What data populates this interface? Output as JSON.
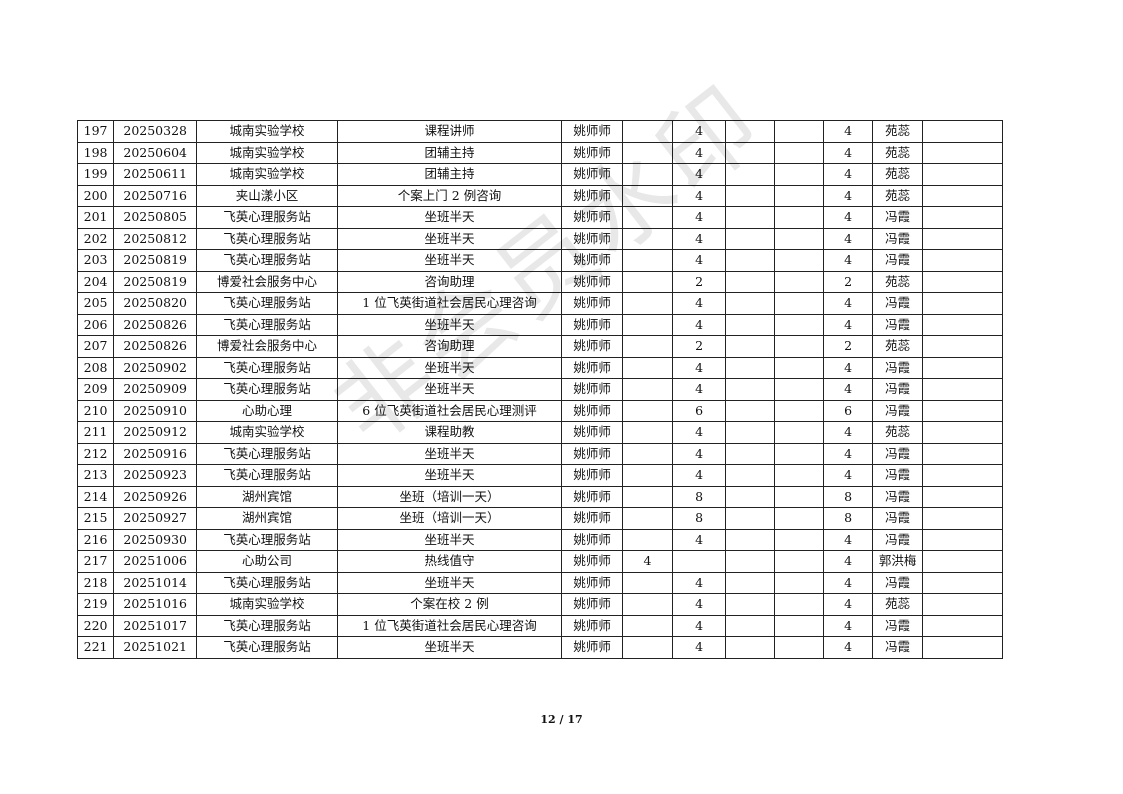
{
  "rows": [
    [
      "197",
      "20250328",
      "城南实验学校",
      "课程讲师",
      "姚师师",
      "",
      "4",
      "",
      "",
      "4",
      "苑蕊",
      ""
    ],
    [
      "198",
      "20250604",
      "城南实验学校",
      "团辅主持",
      "姚师师",
      "",
      "4",
      "",
      "",
      "4",
      "苑蕊",
      ""
    ],
    [
      "199",
      "20250611",
      "城南实验学校",
      "团辅主持",
      "姚师师",
      "",
      "4",
      "",
      "",
      "4",
      "苑蕊",
      ""
    ],
    [
      "200",
      "20250716",
      "夹山漾小区",
      "个案上门 2 例咨询",
      "姚师师",
      "",
      "4",
      "",
      "",
      "4",
      "苑蕊",
      ""
    ],
    [
      "201",
      "20250805",
      "飞英心理服务站",
      "坐班半天",
      "姚师师",
      "",
      "4",
      "",
      "",
      "4",
      "冯霞",
      ""
    ],
    [
      "202",
      "20250812",
      "飞英心理服务站",
      "坐班半天",
      "姚师师",
      "",
      "4",
      "",
      "",
      "4",
      "冯霞",
      ""
    ],
    [
      "203",
      "20250819",
      "飞英心理服务站",
      "坐班半天",
      "姚师师",
      "",
      "4",
      "",
      "",
      "4",
      "冯霞",
      ""
    ],
    [
      "204",
      "20250819",
      "博爱社会服务中心",
      "咨询助理",
      "姚师师",
      "",
      "2",
      "",
      "",
      "2",
      "苑蕊",
      ""
    ],
    [
      "205",
      "20250820",
      "飞英心理服务站",
      "1 位飞英街道社会居民心理咨询",
      "姚师师",
      "",
      "4",
      "",
      "",
      "4",
      "冯霞",
      ""
    ],
    [
      "206",
      "20250826",
      "飞英心理服务站",
      "坐班半天",
      "姚师师",
      "",
      "4",
      "",
      "",
      "4",
      "冯霞",
      ""
    ],
    [
      "207",
      "20250826",
      "博爱社会服务中心",
      "咨询助理",
      "姚师师",
      "",
      "2",
      "",
      "",
      "2",
      "苑蕊",
      ""
    ],
    [
      "208",
      "20250902",
      "飞英心理服务站",
      "坐班半天",
      "姚师师",
      "",
      "4",
      "",
      "",
      "4",
      "冯霞",
      ""
    ],
    [
      "209",
      "20250909",
      "飞英心理服务站",
      "坐班半天",
      "姚师师",
      "",
      "4",
      "",
      "",
      "4",
      "冯霞",
      ""
    ],
    [
      "210",
      "20250910",
      "心助心理",
      "6 位飞英街道社会居民心理测评",
      "姚师师",
      "",
      "6",
      "",
      "",
      "6",
      "冯霞",
      ""
    ],
    [
      "211",
      "20250912",
      "城南实验学校",
      "课程助教",
      "姚师师",
      "",
      "4",
      "",
      "",
      "4",
      "苑蕊",
      ""
    ],
    [
      "212",
      "20250916",
      "飞英心理服务站",
      "坐班半天",
      "姚师师",
      "",
      "4",
      "",
      "",
      "4",
      "冯霞",
      ""
    ],
    [
      "213",
      "20250923",
      "飞英心理服务站",
      "坐班半天",
      "姚师师",
      "",
      "4",
      "",
      "",
      "4",
      "冯霞",
      ""
    ],
    [
      "214",
      "20250926",
      "湖州宾馆",
      "坐班（培训一天）",
      "姚师师",
      "",
      "8",
      "",
      "",
      "8",
      "冯霞",
      ""
    ],
    [
      "215",
      "20250927",
      "湖州宾馆",
      "坐班（培训一天）",
      "姚师师",
      "",
      "8",
      "",
      "",
      "8",
      "冯霞",
      ""
    ],
    [
      "216",
      "20250930",
      "飞英心理服务站",
      "坐班半天",
      "姚师师",
      "",
      "4",
      "",
      "",
      "4",
      "冯霞",
      ""
    ],
    [
      "217",
      "20251006",
      "心助公司",
      "热线值守",
      "姚师师",
      "4",
      "",
      "",
      "",
      "4",
      "郭洪梅",
      ""
    ],
    [
      "218",
      "20251014",
      "飞英心理服务站",
      "坐班半天",
      "姚师师",
      "",
      "4",
      "",
      "",
      "4",
      "冯霞",
      ""
    ],
    [
      "219",
      "20251016",
      "城南实验学校",
      "个案在校 2 例",
      "姚师师",
      "",
      "4",
      "",
      "",
      "4",
      "苑蕊",
      ""
    ],
    [
      "220",
      "20251017",
      "飞英心理服务站",
      "1 位飞英街道社会居民心理咨询",
      "姚师师",
      "",
      "4",
      "",
      "",
      "4",
      "冯霞",
      ""
    ],
    [
      "221",
      "20251021",
      "飞英心理服务站",
      "坐班半天",
      "姚师师",
      "",
      "4",
      "",
      "",
      "4",
      "冯霞",
      ""
    ]
  ],
  "watermark": "非会员水印",
  "page_number": "12 / 17"
}
